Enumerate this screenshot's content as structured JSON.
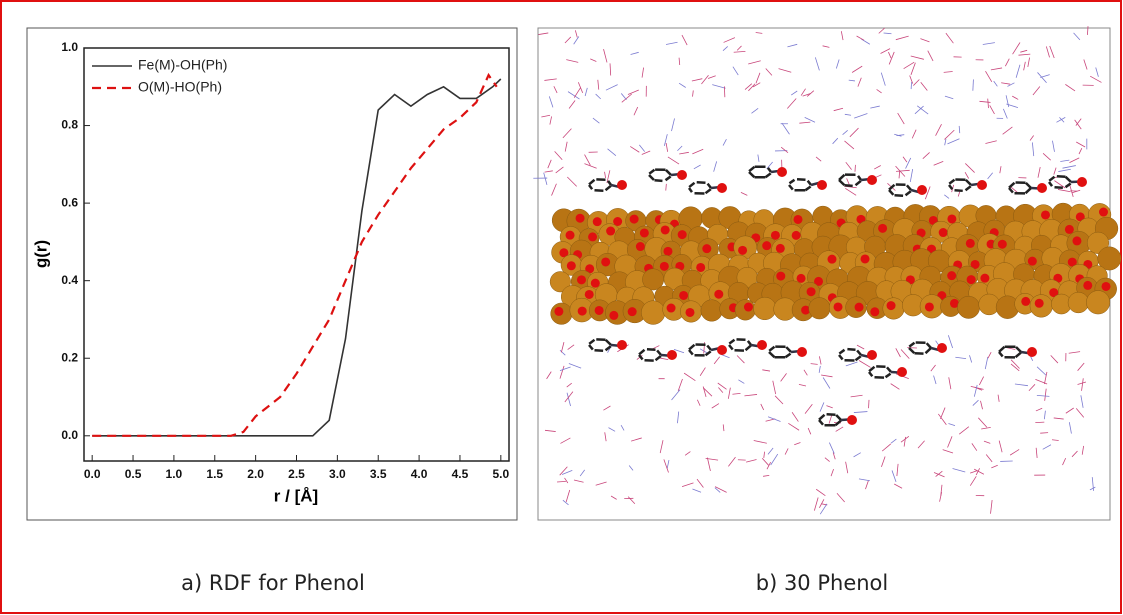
{
  "chart_data": {
    "type": "line",
    "xlabel": "r / [Å]",
    "ylabel": "g(r)",
    "xlim": [
      -0.1,
      5.1
    ],
    "ylim": [
      -0.065,
      1.0
    ],
    "xticks": [
      {
        "value": 0,
        "label": "0.0"
      },
      0.5,
      {
        "value": 1,
        "label": "1.0"
      },
      1.5,
      {
        "value": 2,
        "label": "2.0"
      },
      2.5,
      {
        "value": 3,
        "label": "3.0"
      },
      3.5,
      {
        "value": 4,
        "label": "4.0"
      },
      4.5,
      {
        "value": 5,
        "label": "5.0"
      }
    ],
    "yticks": [
      {
        "value": 0,
        "label": "0.0"
      },
      0.2,
      0.4,
      0.6,
      0.8,
      {
        "value": 1,
        "label": "1.0"
      }
    ],
    "legend": "upper left",
    "series": [
      {
        "name": "Fe(M)-OH(Ph)",
        "color": "#333333",
        "style": "solid",
        "x": [
          0,
          2.7,
          2.9,
          3.1,
          3.3,
          3.5,
          3.7,
          3.9,
          4.1,
          4.3,
          4.5,
          4.7,
          4.9,
          5.0
        ],
        "values": [
          0,
          0,
          0.04,
          0.25,
          0.58,
          0.84,
          0.88,
          0.85,
          0.88,
          0.9,
          0.87,
          0.87,
          0.9,
          0.92
        ]
      },
      {
        "name": "O(M)-HO(Ph)",
        "color": "#dd1111",
        "style": "dashed",
        "x": [
          0,
          1.7,
          1.85,
          2.0,
          2.3,
          2.5,
          2.7,
          2.9,
          3.1,
          3.3,
          3.5,
          3.7,
          3.9,
          4.1,
          4.3,
          4.5,
          4.7,
          4.85,
          4.95
        ],
        "values": [
          0,
          0,
          0.01,
          0.05,
          0.1,
          0.16,
          0.23,
          0.3,
          0.4,
          0.5,
          0.57,
          0.63,
          0.69,
          0.74,
          0.79,
          0.82,
          0.86,
          0.93,
          0.9
        ]
      }
    ]
  },
  "captions": [
    "a) RDF for Phenol",
    "b) 30 Phenol"
  ]
}
